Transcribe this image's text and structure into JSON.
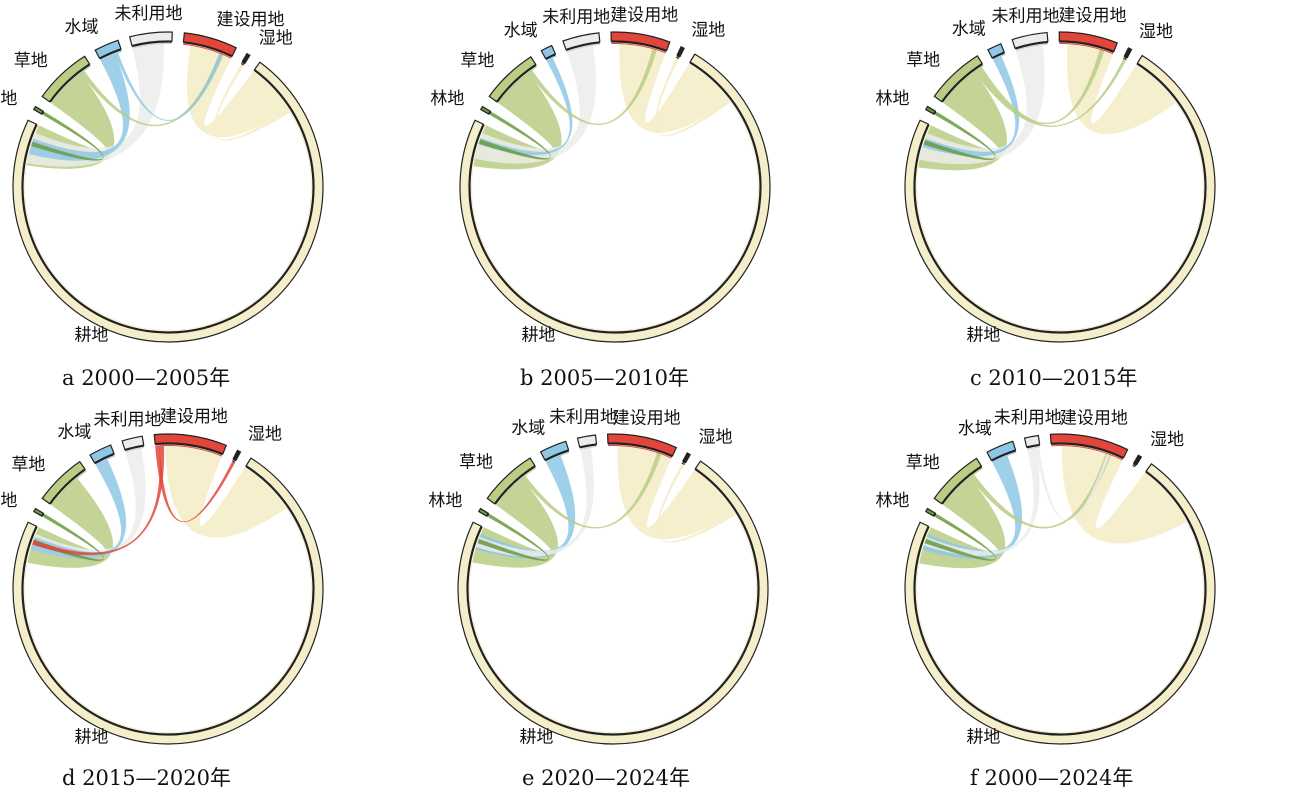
{
  "colors": {
    "林地": "#6a9a3e",
    "草地": "#b9cd84",
    "水域": "#8ec8e6",
    "未利用地": "#ececea",
    "建设用地": "#e2463a",
    "湿地": "#222222",
    "耕地": "#f4eecb"
  },
  "node_order": [
    "林地",
    "草地",
    "水域",
    "未利用地",
    "建设用地",
    "湿地",
    "耕地"
  ],
  "panels": [
    {
      "caption": "a  2000—2005年",
      "nodes": [
        {
          "name": "林地",
          "value": 0.3
        },
        {
          "name": "草地",
          "value": 5.2
        },
        {
          "name": "水域",
          "value": 2.2
        },
        {
          "name": "未利用地",
          "value": 3.8
        },
        {
          "name": "建设用地",
          "value": 4.8
        },
        {
          "name": "湿地",
          "value": 0.3
        },
        {
          "name": "耕地",
          "value": 62
        }
      ],
      "flows": [
        {
          "from": "耕地",
          "to": "建设用地",
          "value": 5
        },
        {
          "from": "草地",
          "to": "耕地",
          "value": 4
        },
        {
          "from": "未利用地",
          "to": "耕地",
          "value": 3
        },
        {
          "from": "水域",
          "to": "耕地",
          "value": 1.5
        },
        {
          "from": "林地",
          "to": "耕地",
          "value": 0.4
        },
        {
          "from": "草地",
          "to": "建设用地",
          "value": 0.4
        },
        {
          "from": "水域",
          "to": "建设用地",
          "value": 0.3
        },
        {
          "from": "耕地",
          "to": "湿地",
          "value": 0.3
        }
      ]
    },
    {
      "caption": "b  2005—2010年",
      "nodes": [
        {
          "name": "林地",
          "value": 0.3
        },
        {
          "name": "草地",
          "value": 5.0
        },
        {
          "name": "水域",
          "value": 1.0
        },
        {
          "name": "未利用地",
          "value": 3.2
        },
        {
          "name": "建设用地",
          "value": 5.2
        },
        {
          "name": "湿地",
          "value": 0.3
        },
        {
          "name": "耕地",
          "value": 62
        }
      ],
      "flows": [
        {
          "from": "耕地",
          "to": "建设用地",
          "value": 5
        },
        {
          "from": "草地",
          "to": "耕地",
          "value": 4
        },
        {
          "from": "未利用地",
          "to": "耕地",
          "value": 2.5
        },
        {
          "from": "水域",
          "to": "耕地",
          "value": 0.6
        },
        {
          "from": "林地",
          "to": "耕地",
          "value": 0.4
        },
        {
          "from": "草地",
          "to": "建设用地",
          "value": 0.4
        },
        {
          "from": "耕地",
          "to": "湿地",
          "value": 0.3
        }
      ]
    },
    {
      "caption": "c  2010—2015年",
      "nodes": [
        {
          "name": "林地",
          "value": 0.3
        },
        {
          "name": "草地",
          "value": 5.0
        },
        {
          "name": "水域",
          "value": 1.2
        },
        {
          "name": "未利用地",
          "value": 3.0
        },
        {
          "name": "建设用地",
          "value": 5.0
        },
        {
          "name": "湿地",
          "value": 0.3
        },
        {
          "name": "耕地",
          "value": 60
        }
      ],
      "flows": [
        {
          "from": "耕地",
          "to": "建设用地",
          "value": 5
        },
        {
          "from": "草地",
          "to": "耕地",
          "value": 4
        },
        {
          "from": "未利用地",
          "to": "耕地",
          "value": 2.5
        },
        {
          "from": "水域",
          "to": "耕地",
          "value": 0.8
        },
        {
          "from": "林地",
          "to": "耕地",
          "value": 0.4
        },
        {
          "from": "草地",
          "to": "湿地",
          "value": 0.4
        },
        {
          "from": "草地",
          "to": "建设用地",
          "value": 0.4
        }
      ]
    },
    {
      "caption": "d  2015—2020年",
      "nodes": [
        {
          "name": "林地",
          "value": 0.3
        },
        {
          "name": "草地",
          "value": 4.6
        },
        {
          "name": "水域",
          "value": 2.0
        },
        {
          "name": "未利用地",
          "value": 1.8
        },
        {
          "name": "建设用地",
          "value": 6.4
        },
        {
          "name": "湿地",
          "value": 0.3
        },
        {
          "name": "耕地",
          "value": 62
        }
      ],
      "flows": [
        {
          "from": "耕地",
          "to": "建设用地",
          "value": 5.5
        },
        {
          "from": "草地",
          "to": "耕地",
          "value": 3.5
        },
        {
          "from": "未利用地",
          "to": "耕地",
          "value": 1.5
        },
        {
          "from": "水域",
          "to": "耕地",
          "value": 1.2
        },
        {
          "from": "林地",
          "to": "耕地",
          "value": 0.4
        },
        {
          "from": "建设用地",
          "to": "湿地",
          "value": 0.4
        },
        {
          "from": "建设用地",
          "to": "耕地",
          "value": 0.4
        }
      ]
    },
    {
      "caption": "e  2020—2024年",
      "nodes": [
        {
          "name": "林地",
          "value": 0.3
        },
        {
          "name": "草地",
          "value": 5.2
        },
        {
          "name": "水域",
          "value": 2.4
        },
        {
          "name": "未利用地",
          "value": 1.6
        },
        {
          "name": "建设用地",
          "value": 6.2
        },
        {
          "name": "湿地",
          "value": 0.3
        },
        {
          "name": "耕地",
          "value": 62
        }
      ],
      "flows": [
        {
          "from": "耕地",
          "to": "建设用地",
          "value": 5.5
        },
        {
          "from": "草地",
          "to": "耕地",
          "value": 3.5
        },
        {
          "from": "水域",
          "to": "耕地",
          "value": 1.5
        },
        {
          "from": "未利用地",
          "to": "耕地",
          "value": 1.0
        },
        {
          "from": "林地",
          "to": "耕地",
          "value": 0.4
        },
        {
          "from": "草地",
          "to": "建设用地",
          "value": 0.4
        },
        {
          "from": "耕地",
          "to": "湿地",
          "value": 0.3
        }
      ]
    },
    {
      "caption": "f  2000—2024年",
      "nodes": [
        {
          "name": "林地",
          "value": 0.3
        },
        {
          "name": "草地",
          "value": 5.0
        },
        {
          "name": "水域",
          "value": 2.4
        },
        {
          "name": "未利用地",
          "value": 1.2
        },
        {
          "name": "建设用地",
          "value": 6.8
        },
        {
          "name": "湿地",
          "value": 0.3
        },
        {
          "name": "耕地",
          "value": 60
        }
      ],
      "flows": [
        {
          "from": "耕地",
          "to": "建设用地",
          "value": 6
        },
        {
          "from": "草地",
          "to": "耕地",
          "value": 3.5
        },
        {
          "from": "水域",
          "to": "耕地",
          "value": 1.5
        },
        {
          "from": "未利用地",
          "to": "耕地",
          "value": 0.8
        },
        {
          "from": "林地",
          "to": "耕地",
          "value": 0.4
        },
        {
          "from": "草地",
          "to": "建设用地",
          "value": 0.5
        },
        {
          "from": "未利用地",
          "to": "建设用地",
          "value": 0.3
        }
      ]
    }
  ]
}
